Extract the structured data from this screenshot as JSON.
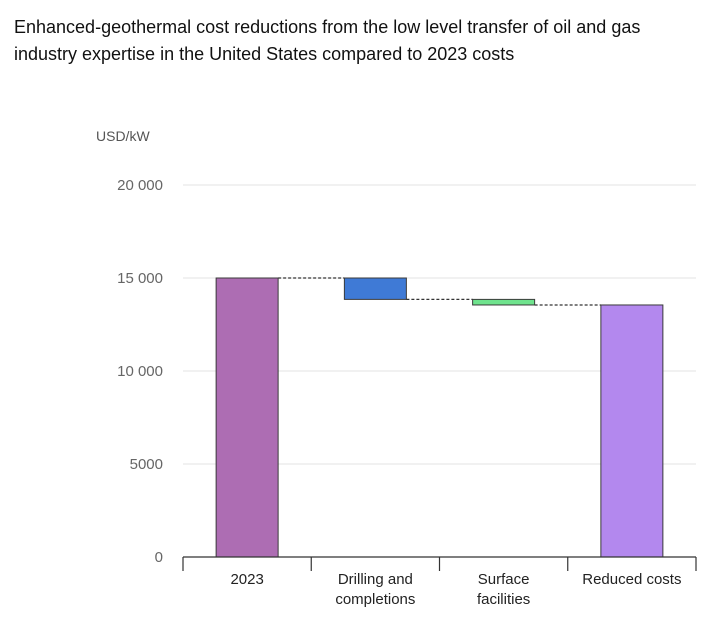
{
  "chart_data": {
    "type": "bar",
    "subtype": "waterfall",
    "title": "Enhanced-geothermal cost reductions from the low level transfer of oil and gas industry expertise in the United States compared to 2023 costs",
    "ylabel": "USD/kW",
    "ylim": [
      0,
      20000
    ],
    "yticks": [
      0,
      5000,
      10000,
      15000,
      20000
    ],
    "ytick_labels": [
      "0",
      "5000",
      "10 000",
      "15 000",
      "20 000"
    ],
    "grid": true,
    "categories": [
      {
        "label": [
          "2023"
        ]
      },
      {
        "label": [
          "Drilling and",
          "completions"
        ]
      },
      {
        "label": [
          "Surface",
          "facilities"
        ]
      },
      {
        "label": [
          "Reduced costs"
        ]
      }
    ],
    "bars": [
      {
        "category": "2023",
        "kind": "total",
        "start": 0,
        "end": 15000,
        "color": "#ad6db3"
      },
      {
        "category": "Drilling and completions",
        "kind": "decrease",
        "start": 15000,
        "end": 13850,
        "color": "#3f7ad6"
      },
      {
        "category": "Surface facilities",
        "kind": "decrease",
        "start": 13850,
        "end": 13550,
        "color": "#6fe38d"
      },
      {
        "category": "Reduced costs",
        "kind": "total",
        "start": 0,
        "end": 13550,
        "color": "#b388ee"
      }
    ]
  }
}
